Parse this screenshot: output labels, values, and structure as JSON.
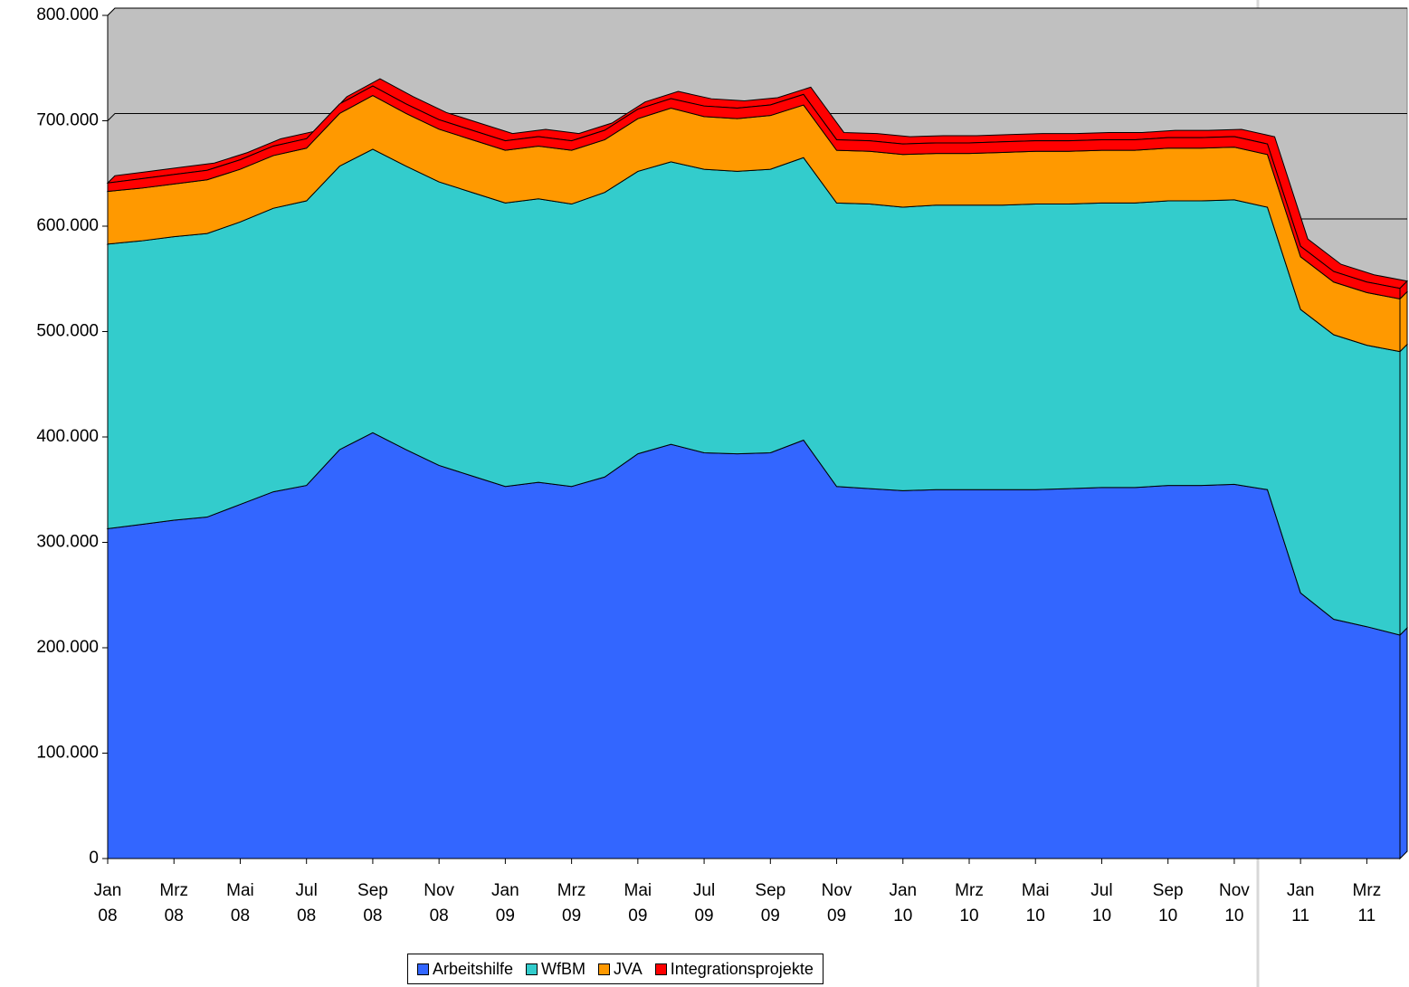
{
  "chart_data": {
    "type": "stacked-area",
    "categories": [
      "Jan\n08",
      null,
      "Mrz\n08",
      null,
      "Mai\n08",
      null,
      "Jul\n08",
      null,
      "Sep\n08",
      null,
      "Nov\n08",
      null,
      "Jan\n09",
      null,
      "Mrz\n09",
      null,
      "Mai\n09",
      null,
      "Jul\n09",
      null,
      "Sep\n09",
      null,
      "Nov\n09",
      null,
      "Jan\n10",
      null,
      "Mrz\n10",
      null,
      "Mai\n10",
      null,
      "Jul\n10",
      null,
      "Sep\n10",
      null,
      "Nov\n10",
      null,
      "Jan\n11",
      null,
      "Mrz\n11",
      null
    ],
    "series": [
      {
        "name": "Arbeitshilfe",
        "color": "#3366ff",
        "values": [
          313000,
          317000,
          321000,
          324000,
          336000,
          348000,
          354000,
          388000,
          404000,
          388000,
          373000,
          363000,
          353000,
          357000,
          353000,
          362000,
          384000,
          393000,
          385000,
          384000,
          385000,
          397000,
          353000,
          351000,
          349000,
          350000,
          350000,
          350000,
          350000,
          351000,
          352000,
          352000,
          354000,
          354000,
          355000,
          350000,
          252000,
          227000,
          220000,
          212000
        ]
      },
      {
        "name": "WfBM",
        "color": "#33cccc",
        "values": [
          270000,
          269000,
          269000,
          269000,
          268000,
          269000,
          270000,
          269000,
          269000,
          269000,
          269000,
          269000,
          269000,
          269000,
          268000,
          270000,
          268000,
          268000,
          269000,
          268000,
          269000,
          268000,
          269000,
          270000,
          269000,
          270000,
          270000,
          270000,
          271000,
          270000,
          270000,
          270000,
          270000,
          270000,
          270000,
          268000,
          269000,
          270000,
          267000,
          269000
        ]
      },
      {
        "name": "JVA",
        "color": "#ff9900",
        "values": [
          50000,
          50000,
          50000,
          51000,
          50000,
          50000,
          50000,
          50000,
          51000,
          50000,
          50000,
          50000,
          50000,
          50000,
          51000,
          50000,
          50000,
          51000,
          50000,
          50000,
          51000,
          50000,
          50000,
          50000,
          50000,
          49000,
          49000,
          50000,
          50000,
          50000,
          50000,
          50000,
          50000,
          50000,
          50000,
          50000,
          50000,
          50000,
          50000,
          50000
        ]
      },
      {
        "name": "Integrationsprojekte",
        "color": "#ff0000",
        "values": [
          8000,
          9000,
          9000,
          9000,
          9000,
          9000,
          9000,
          9000,
          9000,
          9000,
          9000,
          9000,
          9000,
          9000,
          9000,
          9000,
          9000,
          9000,
          10000,
          10000,
          10000,
          10000,
          10000,
          10000,
          10000,
          10000,
          10000,
          10000,
          10000,
          10000,
          10000,
          10000,
          10000,
          10000,
          10000,
          10000,
          10000,
          10000,
          10000,
          10000
        ]
      }
    ],
    "ylim": [
      0,
      800000
    ],
    "yticks": [
      0,
      {
        "value": 100000,
        "label": "100.000"
      },
      {
        "value": 200000,
        "label": "200.000"
      },
      {
        "value": 300000,
        "label": "300.000"
      },
      {
        "value": 400000,
        "label": "400.000"
      },
      {
        "value": 500000,
        "label": "500.000"
      },
      {
        "value": 600000,
        "label": "600.000"
      },
      {
        "value": 700000,
        "label": "700.000"
      },
      {
        "value": 800000,
        "label": "800.000"
      }
    ],
    "grid": true
  }
}
